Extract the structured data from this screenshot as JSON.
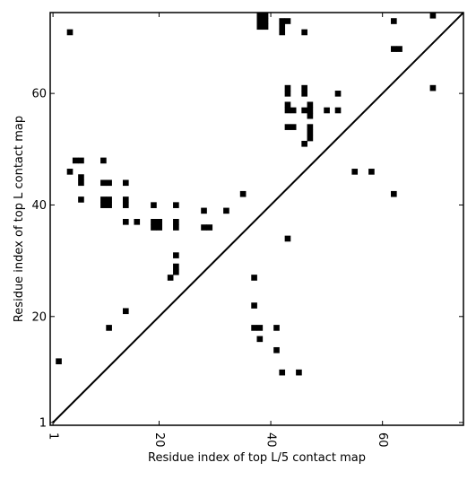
{
  "chart_data": {
    "type": "scatter",
    "title": "",
    "xlabel": "Residue index of top L/5 contact map",
    "ylabel": "Residue index of top L contact map",
    "xlim": [
      0.5,
      74.5
    ],
    "ylim": [
      0.5,
      74.5
    ],
    "xticks": [
      1,
      20,
      40,
      60
    ],
    "yticks": [
      1,
      20,
      40,
      60
    ],
    "grid": false,
    "legend": "none",
    "marker_color": "#000000",
    "diagonal": {
      "from": [
        1,
        1
      ],
      "to": [
        74,
        74
      ]
    },
    "upper_points": [
      [
        4,
        71
      ],
      [
        38,
        74
      ],
      [
        39,
        74
      ],
      [
        38,
        73
      ],
      [
        39,
        73
      ],
      [
        38,
        72
      ],
      [
        39,
        72
      ],
      [
        42,
        73
      ],
      [
        43,
        73
      ],
      [
        42,
        72
      ],
      [
        42,
        71
      ],
      [
        46,
        71
      ],
      [
        62,
        73
      ],
      [
        69,
        74
      ],
      [
        62,
        68
      ],
      [
        63,
        68
      ],
      [
        69,
        61
      ],
      [
        43,
        61
      ],
      [
        43,
        60
      ],
      [
        46,
        61
      ],
      [
        46,
        60
      ],
      [
        52,
        60
      ],
      [
        43,
        58
      ],
      [
        43,
        57
      ],
      [
        44,
        57
      ],
      [
        46,
        57
      ],
      [
        47,
        58
      ],
      [
        47,
        57
      ],
      [
        47,
        56
      ],
      [
        50,
        57
      ],
      [
        52,
        57
      ],
      [
        43,
        54
      ],
      [
        44,
        54
      ],
      [
        47,
        54
      ],
      [
        47,
        53
      ],
      [
        47,
        52
      ],
      [
        46,
        51
      ],
      [
        5,
        48
      ],
      [
        6,
        48
      ],
      [
        10,
        48
      ],
      [
        4,
        46
      ],
      [
        6,
        45
      ],
      [
        6,
        44
      ],
      [
        10,
        44
      ],
      [
        11,
        44
      ],
      [
        14,
        44
      ],
      [
        35,
        42
      ],
      [
        6,
        41
      ],
      [
        10,
        41
      ],
      [
        11,
        41
      ],
      [
        14,
        41
      ],
      [
        10,
        40
      ],
      [
        11,
        40
      ],
      [
        14,
        40
      ],
      [
        19,
        40
      ],
      [
        23,
        40
      ],
      [
        28,
        39
      ],
      [
        32,
        39
      ],
      [
        14,
        37
      ],
      [
        16,
        37
      ],
      [
        19,
        37
      ],
      [
        20,
        37
      ],
      [
        23,
        37
      ],
      [
        19,
        36
      ],
      [
        20,
        36
      ],
      [
        23,
        36
      ],
      [
        28,
        36
      ],
      [
        29,
        36
      ]
    ],
    "lower_points": [
      [
        43,
        34
      ],
      [
        23,
        31
      ],
      [
        23,
        29
      ],
      [
        23,
        28
      ],
      [
        22,
        27
      ],
      [
        37,
        27
      ],
      [
        37,
        22
      ],
      [
        14,
        21
      ],
      [
        11,
        18
      ],
      [
        37,
        18
      ],
      [
        38,
        18
      ],
      [
        41,
        18
      ],
      [
        38,
        16
      ],
      [
        41,
        14
      ],
      [
        2,
        12
      ],
      [
        42,
        10
      ],
      [
        45,
        10
      ],
      [
        55,
        46
      ],
      [
        58,
        46
      ],
      [
        62,
        42
      ]
    ]
  }
}
